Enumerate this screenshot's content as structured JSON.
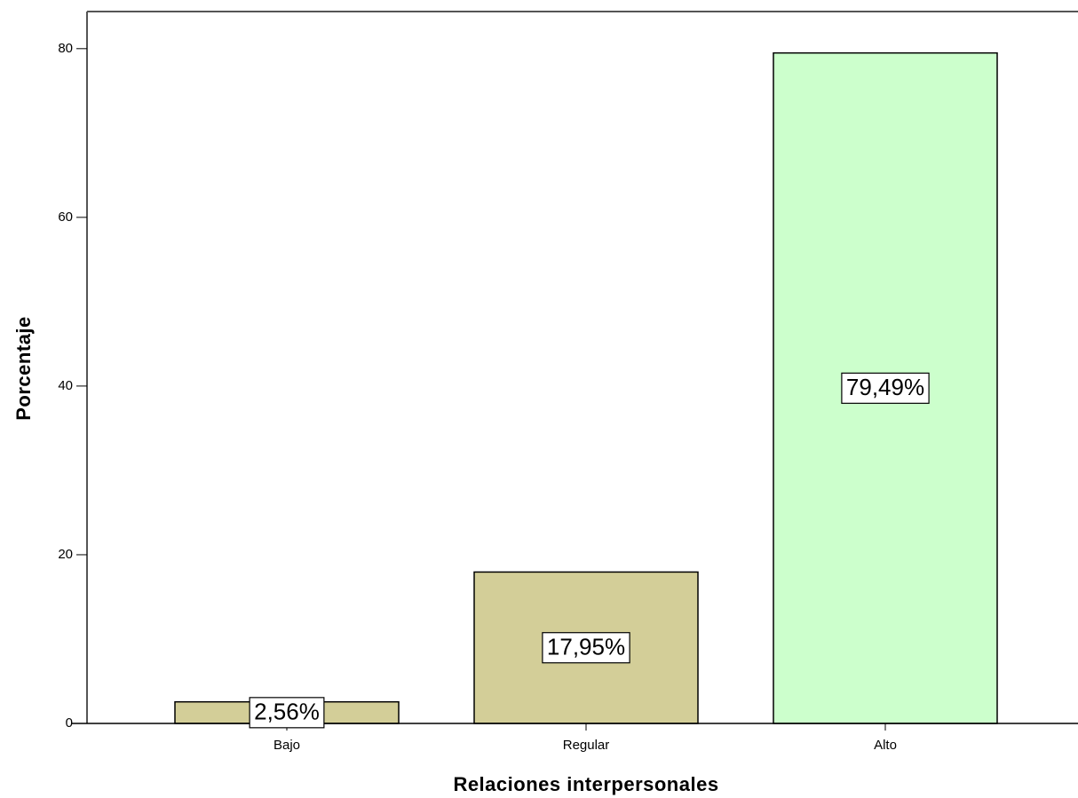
{
  "chart_data": {
    "type": "bar",
    "x_label": "Relaciones interpersonales",
    "y_label": "Porcentaje",
    "categories": [
      "Bajo",
      "Regular",
      "Alto"
    ],
    "values": [
      2.56,
      17.95,
      79.49
    ],
    "value_labels": [
      "2,56%",
      "17,95%",
      "79,49%"
    ],
    "colors": [
      "#d3ce98",
      "#d3ce98",
      "#ccffcc"
    ],
    "ylim": [
      0,
      84.4
    ],
    "yticks": [
      0,
      20,
      40,
      60,
      80
    ],
    "grid": false
  }
}
